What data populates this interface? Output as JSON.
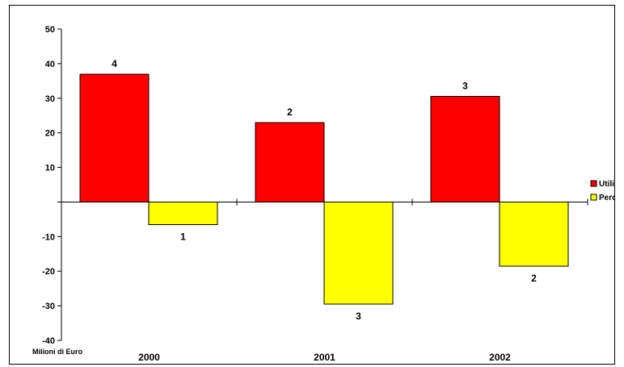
{
  "chart_data": {
    "type": "bar",
    "categories": [
      "2000",
      "2001",
      "2002"
    ],
    "series": [
      {
        "name": "Utili",
        "values": [
          37,
          23,
          30.5
        ],
        "labels": [
          "4",
          "2",
          "3"
        ],
        "color": "#ff0000"
      },
      {
        "name": "Perdite",
        "values": [
          -6.5,
          -29.5,
          -18.5
        ],
        "labels": [
          "1",
          "3",
          "2"
        ],
        "color": "#ffff00"
      }
    ],
    "ylim": [
      -40,
      50
    ],
    "yticks": [
      50,
      40,
      30,
      20,
      10,
      0,
      -10,
      -20,
      -30,
      -40
    ],
    "ytick_labels": [
      "50",
      "40",
      "30",
      "20",
      "10",
      "",
      "-10",
      "-20",
      "-30",
      "-40"
    ],
    "ylabel": "Milioni di Euro",
    "xlabel": "",
    "title": "",
    "legend": "right",
    "grid": false
  }
}
